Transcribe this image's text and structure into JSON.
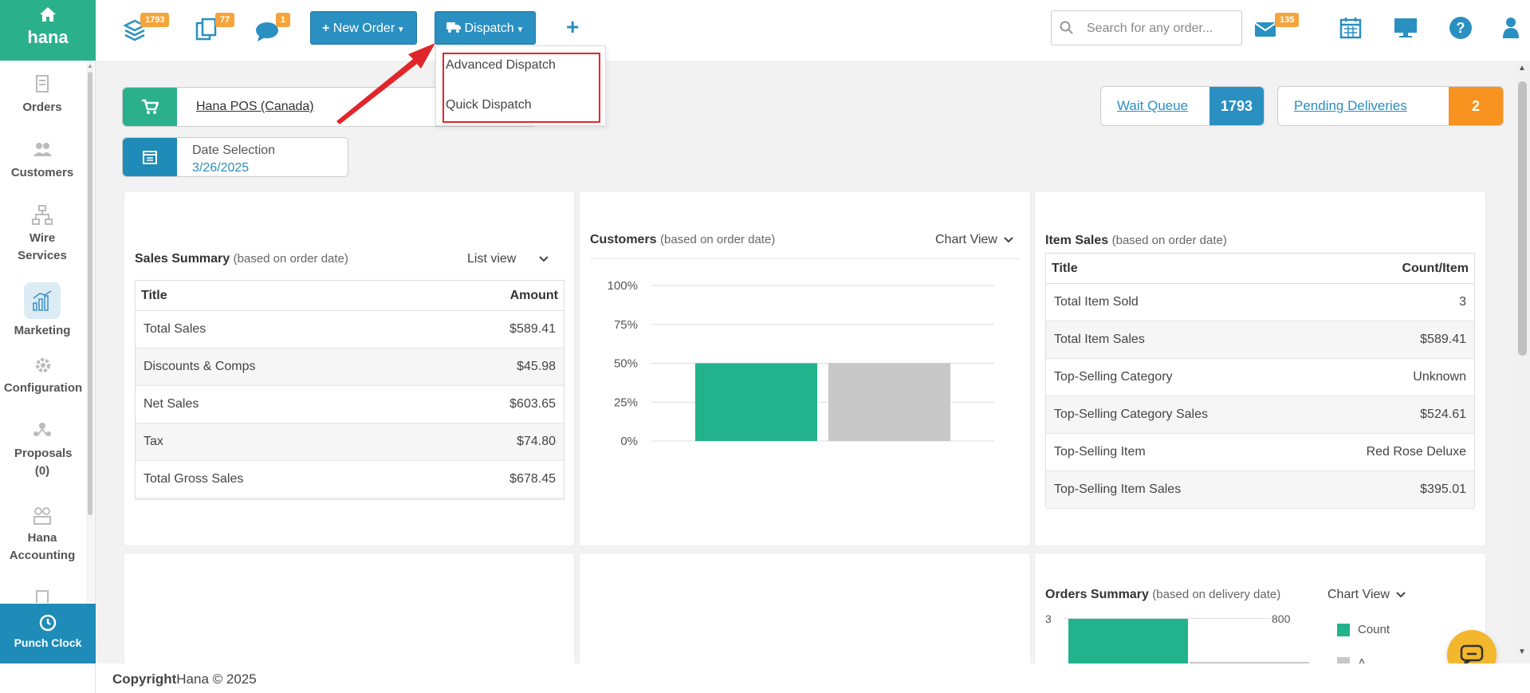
{
  "app": {
    "brand": "hana"
  },
  "sidebar": {
    "items": [
      {
        "label": "Orders"
      },
      {
        "label": "Customers"
      },
      {
        "label": "Wire Services"
      },
      {
        "label": "Marketing"
      },
      {
        "label": "Configuration"
      },
      {
        "label": "Proposals (0)"
      },
      {
        "label": "Hana Accounting"
      }
    ],
    "punch_clock": "Punch Clock"
  },
  "topbar": {
    "badges": {
      "queue": "1793",
      "orders": "77",
      "messages": "1",
      "mail": "135"
    },
    "new_order": "New Order",
    "dispatch": "Dispatch",
    "search_placeholder": "Search for any order..."
  },
  "dispatch_menu": {
    "items": [
      "Advanced Dispatch",
      "Quick Dispatch"
    ]
  },
  "store": {
    "name": "Hana POS (Canada)"
  },
  "date_selection": {
    "label": "Date Selection",
    "value": "3/26/2025"
  },
  "wait_queue": {
    "label": "Wait Queue",
    "count": "1793"
  },
  "pending_deliveries": {
    "label": "Pending Deliveries",
    "count": "2"
  },
  "sales_summary": {
    "title": "Sales Summary",
    "subtitle": "(based on order date)",
    "view": "List view",
    "columns": [
      "Title",
      "Amount"
    ],
    "rows": [
      [
        "Total Sales",
        "$589.41"
      ],
      [
        "Discounts & Comps",
        "$45.98"
      ],
      [
        "Net Sales",
        "$603.65"
      ],
      [
        "Tax",
        "$74.80"
      ],
      [
        "Total Gross Sales",
        "$678.45"
      ]
    ]
  },
  "customers": {
    "title": "Customers",
    "subtitle": "(based on order date)",
    "view": "Chart View"
  },
  "chart_data": {
    "type": "bar",
    "categories": [
      "",
      ""
    ],
    "values": [
      50,
      50
    ],
    "colors": [
      "#22b38c",
      "#c8c8c8"
    ],
    "ylim": [
      0,
      100
    ],
    "yticks": [
      "100%",
      "75%",
      "50%",
      "25%",
      "0%"
    ],
    "grid": true
  },
  "item_sales": {
    "title": "Item Sales",
    "subtitle": "(based on order date)",
    "columns": [
      "Title",
      "Count/Item"
    ],
    "rows": [
      [
        "Total Item Sold",
        "3"
      ],
      [
        "Total Item Sales",
        "$589.41"
      ],
      [
        "Top-Selling Category",
        "Unknown"
      ],
      [
        "Top-Selling Category Sales",
        "$524.61"
      ],
      [
        "Top-Selling Item",
        "Red Rose Deluxe"
      ],
      [
        "Top-Selling Item Sales",
        "$395.01"
      ]
    ]
  },
  "orders_summary": {
    "title": "Orders Summary",
    "subtitle": "(based on delivery date)",
    "view": "Chart View",
    "left_tick": "3",
    "right_tick": "800",
    "legend": [
      "Count",
      "A"
    ]
  },
  "footer": {
    "brand": "Copyright",
    "text": "Hana © 2025"
  },
  "colors": {
    "green": "#2bb08c",
    "blue": "#2a8fc1",
    "orange": "#f5a43b",
    "red": "#e0262b"
  }
}
